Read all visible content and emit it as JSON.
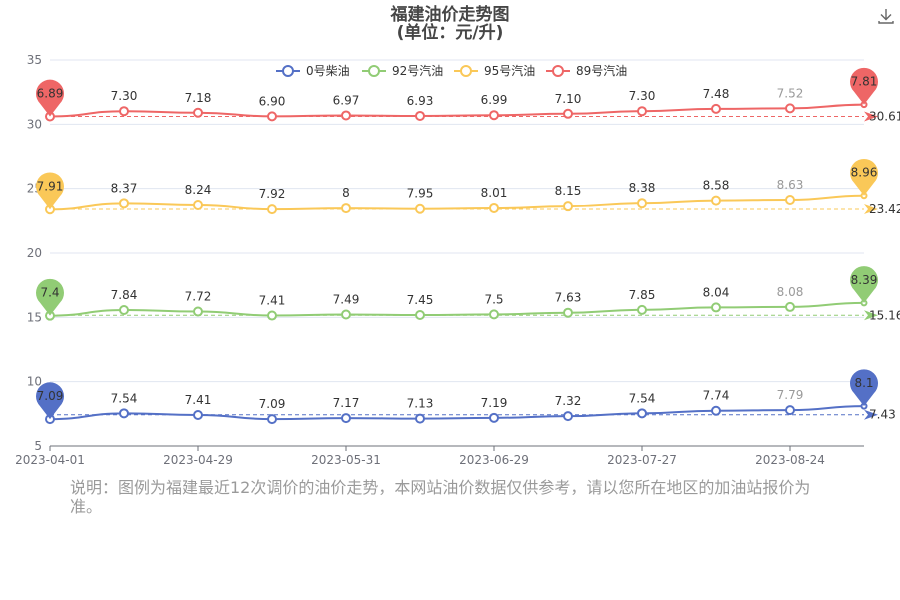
{
  "chart_data": {
    "type": "line",
    "title": "福建油价走势图",
    "subtitle": "(单位：元/升)",
    "x": [
      "2023-04-01",
      "2023-04-15",
      "2023-04-29",
      "2023-05-16",
      "2023-05-31",
      "2023-06-15",
      "2023-06-29",
      "2023-07-13",
      "2023-07-27",
      "2023-08-10",
      "2023-08-24",
      "2023-09-07"
    ],
    "x_tick_labels": [
      "2023-04-01",
      "2023-04-29",
      "2023-05-31",
      "2023-06-29",
      "2023-07-27",
      "2023-08-24"
    ],
    "y_ticks": [
      "5",
      "10",
      "15",
      "20",
      "25",
      "30",
      "35"
    ],
    "ylim": [
      5,
      35
    ],
    "grid": true,
    "legend_position": "top-center",
    "series": [
      {
        "name": "0号柴油",
        "color": "#5470c6",
        "offset": 0,
        "values": [
          7.09,
          7.54,
          7.41,
          7.09,
          7.17,
          7.13,
          7.19,
          7.32,
          7.54,
          7.74,
          7.79,
          8.1
        ],
        "labels": [
          "7.09",
          "7.54",
          "7.41",
          "7.09",
          "7.17",
          "7.13",
          "7.19",
          "7.32",
          "7.54",
          "7.74",
          "7.79",
          "8.1"
        ],
        "average_label": "7.43",
        "average": 7.43,
        "max_label": "8.1",
        "min_label": "7.09"
      },
      {
        "name": "92号汽油",
        "color": "#91cc75",
        "offset": 7.73,
        "values": [
          7.4,
          7.84,
          7.72,
          7.41,
          7.49,
          7.45,
          7.5,
          7.63,
          7.85,
          8.04,
          8.08,
          8.39
        ],
        "labels": [
          "7.4",
          "7.84",
          "7.72",
          "7.41",
          "7.49",
          "7.45",
          "7.5",
          "7.63",
          "7.85",
          "8.04",
          "8.08",
          "8.39"
        ],
        "average_label": "15.16",
        "average": 15.16,
        "max_label": "8.39",
        "min_label": "7.4"
      },
      {
        "name": "95号汽油",
        "color": "#fac858",
        "offset": 15.49,
        "values": [
          7.91,
          8.37,
          8.24,
          7.92,
          8,
          7.95,
          8.01,
          8.15,
          8.38,
          8.58,
          8.63,
          8.96
        ],
        "labels": [
          "7.91",
          "8.37",
          "8.24",
          "7.92",
          "8",
          "7.95",
          "8.01",
          "8.15",
          "8.38",
          "8.58",
          "8.63",
          "8.96"
        ],
        "average_label": "23.42",
        "average": 23.42,
        "max_label": "8.96",
        "min_label": "7.91"
      },
      {
        "name": "89号汽油",
        "color": "#ee6666",
        "offset": 23.72,
        "values": [
          6.89,
          7.3,
          7.18,
          6.9,
          6.97,
          6.93,
          6.99,
          7.1,
          7.3,
          7.48,
          7.52,
          7.81
        ],
        "labels": [
          "6.89",
          "7.30",
          "7.18",
          "6.90",
          "6.97",
          "6.93",
          "6.99",
          "7.10",
          "7.30",
          "7.48",
          "7.52",
          "7.81"
        ],
        "average_label": "30.61",
        "average": 30.61,
        "max_label": "7.81",
        "min_label": "6.89"
      }
    ]
  },
  "note": "说明：图例为福建最近12次调价的油价走势，本网站油价数据仅供参考，请以您所在地区的加油站报价为准。",
  "icons": {
    "download": "download-icon"
  }
}
